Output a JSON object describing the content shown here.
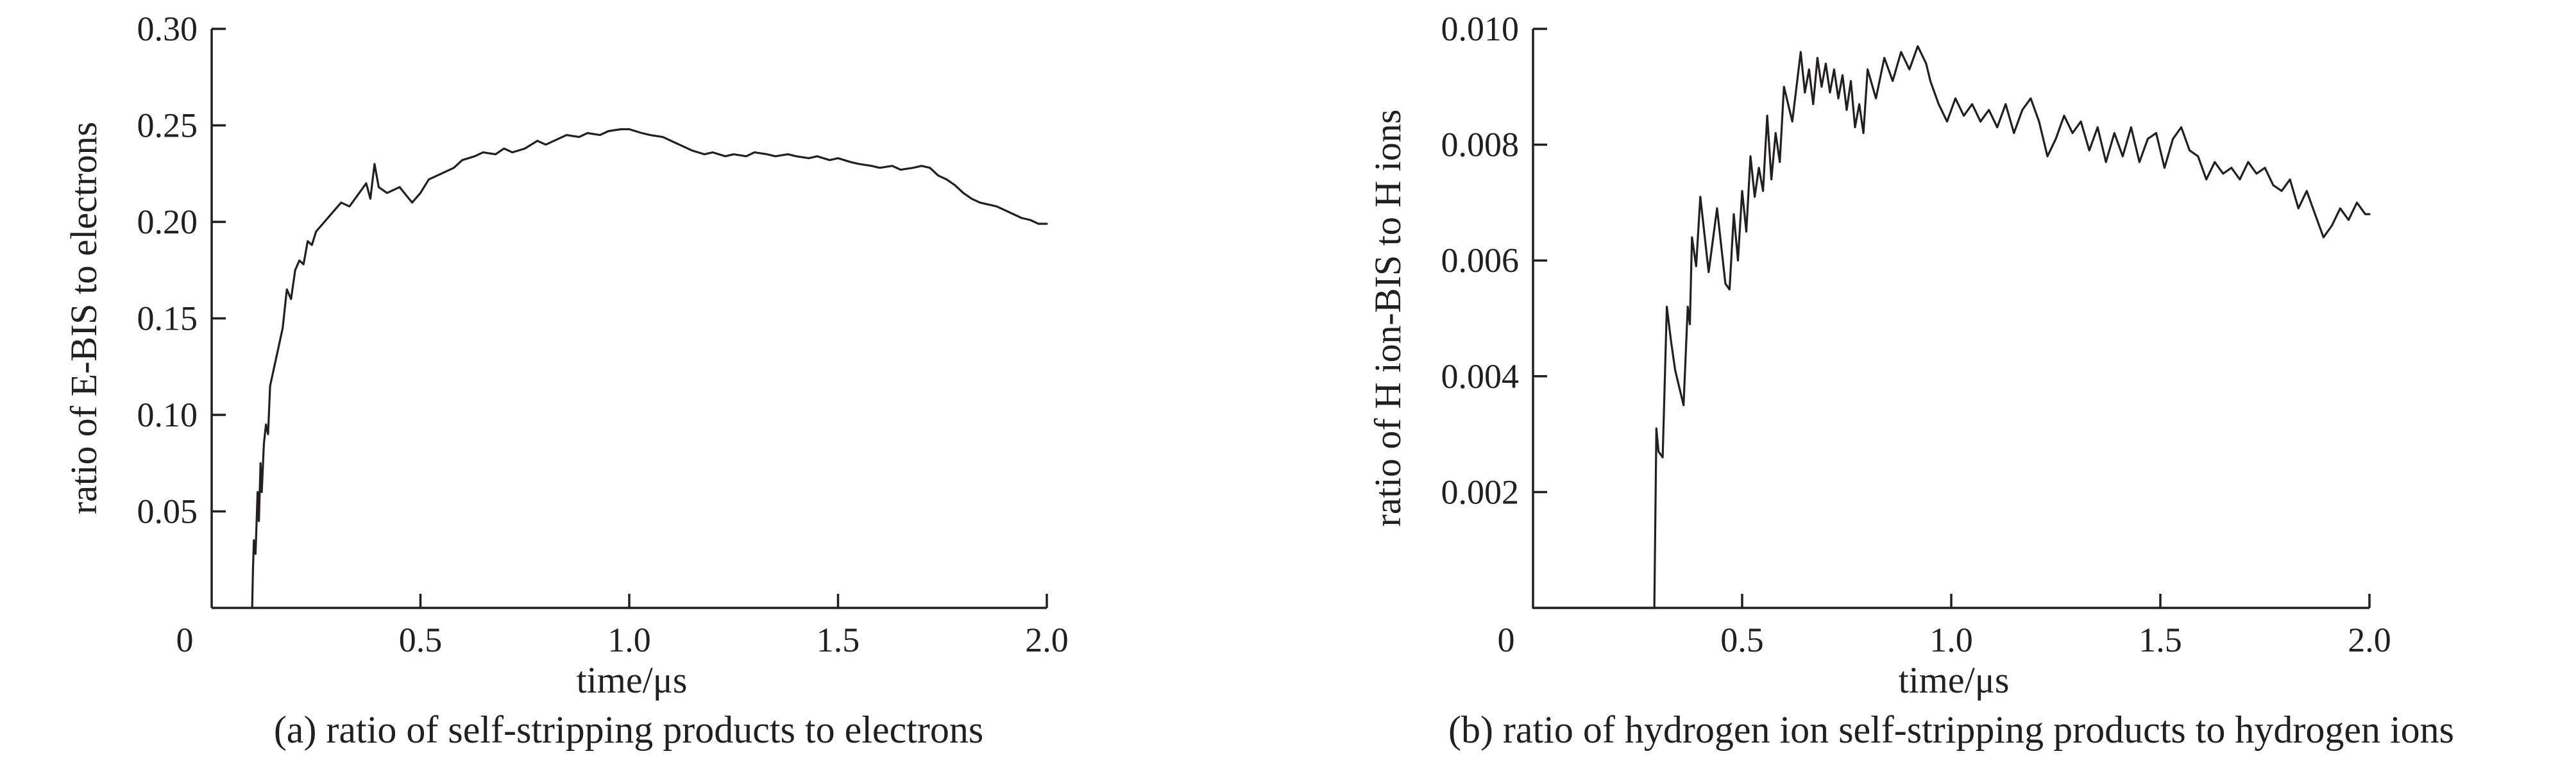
{
  "chart_data": [
    {
      "type": "line",
      "caption": "(a) ratio of self-stripping products to electrons",
      "xlabel": "time/μs",
      "ylabel": "ratio of E-BIS to electrons",
      "xlim": [
        0,
        2.0
      ],
      "ylim": [
        0,
        0.3
      ],
      "xticks": [
        0,
        0.5,
        1.0,
        1.5,
        2.0
      ],
      "xtick_labels": [
        "0",
        "0.5",
        "1.0",
        "1.5",
        "2.0"
      ],
      "yticks": [
        0.05,
        0.1,
        0.15,
        0.2,
        0.25,
        0.3
      ],
      "ytick_labels": [
        "0.05",
        "0.10",
        "0.15",
        "0.20",
        "0.25",
        "0.30"
      ],
      "grid": false,
      "line_color": "#231f20",
      "series": [
        {
          "x": [
            0.097,
            0.099,
            0.101,
            0.105,
            0.11,
            0.113,
            0.117,
            0.12,
            0.125,
            0.13,
            0.135,
            0.14,
            0.15,
            0.16,
            0.17,
            0.18,
            0.19,
            0.2,
            0.21,
            0.22,
            0.23,
            0.24,
            0.25,
            0.27,
            0.29,
            0.31,
            0.33,
            0.35,
            0.37,
            0.38,
            0.39,
            0.4,
            0.42,
            0.45,
            0.48,
            0.5,
            0.52,
            0.55,
            0.58,
            0.6,
            0.63,
            0.65,
            0.68,
            0.7,
            0.72,
            0.75,
            0.78,
            0.8,
            0.83,
            0.85,
            0.88,
            0.9,
            0.93,
            0.95,
            0.98,
            1.0,
            1.03,
            1.05,
            1.08,
            1.1,
            1.13,
            1.15,
            1.18,
            1.2,
            1.23,
            1.25,
            1.28,
            1.3,
            1.33,
            1.35,
            1.38,
            1.4,
            1.43,
            1.45,
            1.48,
            1.5,
            1.53,
            1.55,
            1.58,
            1.6,
            1.63,
            1.65,
            1.68,
            1.7,
            1.72,
            1.74,
            1.76,
            1.78,
            1.8,
            1.82,
            1.84,
            1.86,
            1.88,
            1.9,
            1.92,
            1.94,
            1.96,
            1.98,
            2.0
          ],
          "y": [
            0.0,
            0.02,
            0.035,
            0.028,
            0.06,
            0.045,
            0.075,
            0.06,
            0.085,
            0.095,
            0.09,
            0.115,
            0.125,
            0.135,
            0.145,
            0.165,
            0.16,
            0.175,
            0.18,
            0.178,
            0.19,
            0.188,
            0.195,
            0.2,
            0.205,
            0.21,
            0.208,
            0.214,
            0.22,
            0.212,
            0.23,
            0.218,
            0.215,
            0.218,
            0.21,
            0.215,
            0.222,
            0.225,
            0.228,
            0.232,
            0.234,
            0.236,
            0.235,
            0.238,
            0.236,
            0.238,
            0.242,
            0.24,
            0.243,
            0.245,
            0.244,
            0.246,
            0.245,
            0.247,
            0.248,
            0.248,
            0.246,
            0.245,
            0.244,
            0.242,
            0.239,
            0.237,
            0.235,
            0.236,
            0.234,
            0.235,
            0.234,
            0.236,
            0.235,
            0.234,
            0.235,
            0.234,
            0.233,
            0.234,
            0.232,
            0.233,
            0.231,
            0.23,
            0.229,
            0.228,
            0.229,
            0.227,
            0.228,
            0.229,
            0.228,
            0.224,
            0.222,
            0.219,
            0.215,
            0.212,
            0.21,
            0.209,
            0.208,
            0.206,
            0.204,
            0.202,
            0.201,
            0.199,
            0.199
          ]
        }
      ]
    },
    {
      "type": "line",
      "caption": "(b) ratio of hydrogen ion self-stripping products to hydrogen ions",
      "xlabel": "time/μs",
      "ylabel": "ratio of H ion-BIS to H ions",
      "xlim": [
        0,
        2.0
      ],
      "ylim": [
        0,
        0.01
      ],
      "xticks": [
        0,
        0.5,
        1.0,
        1.5,
        2.0
      ],
      "xtick_labels": [
        "0",
        "0.5",
        "1.0",
        "1.5",
        "2.0"
      ],
      "yticks": [
        0.002,
        0.004,
        0.006,
        0.008,
        0.01
      ],
      "ytick_labels": [
        "0.002",
        "0.004",
        "0.006",
        "0.008",
        "0.010"
      ],
      "grid": false,
      "line_color": "#231f20",
      "series": [
        {
          "x": [
            0.0,
            0.28,
            0.285,
            0.29,
            0.295,
            0.3,
            0.31,
            0.32,
            0.33,
            0.34,
            0.35,
            0.36,
            0.37,
            0.375,
            0.38,
            0.39,
            0.4,
            0.42,
            0.44,
            0.46,
            0.47,
            0.48,
            0.49,
            0.5,
            0.51,
            0.52,
            0.53,
            0.54,
            0.55,
            0.56,
            0.57,
            0.58,
            0.59,
            0.6,
            0.62,
            0.64,
            0.65,
            0.66,
            0.67,
            0.68,
            0.69,
            0.7,
            0.71,
            0.72,
            0.73,
            0.74,
            0.75,
            0.76,
            0.77,
            0.78,
            0.79,
            0.8,
            0.82,
            0.84,
            0.86,
            0.88,
            0.9,
            0.92,
            0.94,
            0.95,
            0.97,
            0.99,
            1.01,
            1.03,
            1.05,
            1.07,
            1.09,
            1.11,
            1.13,
            1.15,
            1.17,
            1.19,
            1.21,
            1.23,
            1.25,
            1.27,
            1.29,
            1.31,
            1.33,
            1.35,
            1.37,
            1.39,
            1.41,
            1.43,
            1.45,
            1.47,
            1.49,
            1.51,
            1.53,
            1.55,
            1.57,
            1.59,
            1.61,
            1.63,
            1.65,
            1.67,
            1.69,
            1.71,
            1.73,
            1.75,
            1.77,
            1.79,
            1.81,
            1.83,
            1.85,
            1.87,
            1.89,
            1.91,
            1.93,
            1.95,
            1.97,
            1.99,
            2.0
          ],
          "y": [
            0.0,
            0.0,
            0.0,
            0.0,
            0.0031,
            0.0027,
            0.0026,
            0.0052,
            0.0046,
            0.0041,
            0.0038,
            0.0035,
            0.0052,
            0.0049,
            0.0064,
            0.0059,
            0.0071,
            0.0058,
            0.0069,
            0.0056,
            0.0055,
            0.0068,
            0.006,
            0.0072,
            0.0065,
            0.0078,
            0.0071,
            0.0076,
            0.0072,
            0.0085,
            0.0074,
            0.0082,
            0.0077,
            0.009,
            0.0084,
            0.0096,
            0.0089,
            0.0093,
            0.0087,
            0.0095,
            0.009,
            0.0094,
            0.0089,
            0.0093,
            0.0088,
            0.0092,
            0.0086,
            0.0091,
            0.0083,
            0.0087,
            0.0082,
            0.0093,
            0.0088,
            0.0095,
            0.0091,
            0.0096,
            0.0093,
            0.0097,
            0.0094,
            0.0091,
            0.0087,
            0.0084,
            0.0088,
            0.0085,
            0.0087,
            0.0084,
            0.0086,
            0.0083,
            0.0087,
            0.0082,
            0.0086,
            0.0088,
            0.0084,
            0.0078,
            0.0081,
            0.0085,
            0.0082,
            0.0084,
            0.0079,
            0.0083,
            0.0077,
            0.0082,
            0.0078,
            0.0083,
            0.0077,
            0.0081,
            0.0082,
            0.0076,
            0.0081,
            0.0083,
            0.0079,
            0.0078,
            0.0074,
            0.0077,
            0.0075,
            0.0076,
            0.0074,
            0.0077,
            0.0075,
            0.0076,
            0.0073,
            0.0072,
            0.0074,
            0.0069,
            0.0072,
            0.0068,
            0.0064,
            0.0066,
            0.0069,
            0.0067,
            0.007,
            0.0068,
            0.0068
          ]
        }
      ]
    }
  ]
}
